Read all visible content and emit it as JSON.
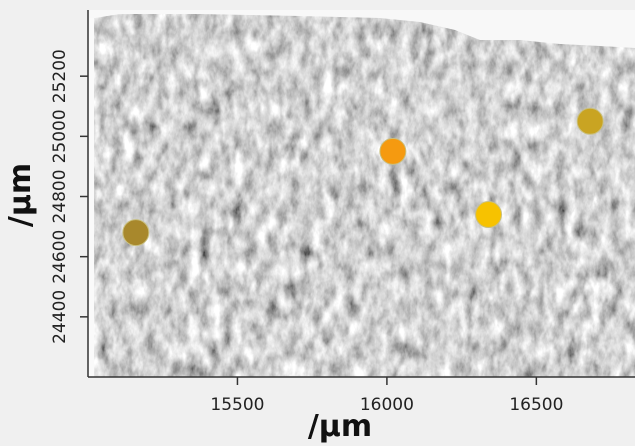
{
  "chart_data": {
    "type": "scatter",
    "xlabel": "/µm",
    "ylabel": "/µm",
    "xlim": [
      15000,
      16830
    ],
    "ylim": [
      24200,
      25420
    ],
    "xticks": [
      15500,
      16000,
      16500
    ],
    "yticks": [
      24400,
      24600,
      24800,
      25000,
      25200
    ],
    "series": [
      {
        "color": "#a8882c",
        "x": [
          15160
        ],
        "values": [
          24680
        ]
      },
      {
        "color": "#f59a10",
        "x": [
          16020
        ],
        "values": [
          24950
        ]
      },
      {
        "color": "#f7c200",
        "x": [
          16340
        ],
        "values": [
          24740
        ]
      },
      {
        "color": "#c9a422",
        "x": [
          16680
        ],
        "values": [
          25050
        ]
      }
    ]
  }
}
